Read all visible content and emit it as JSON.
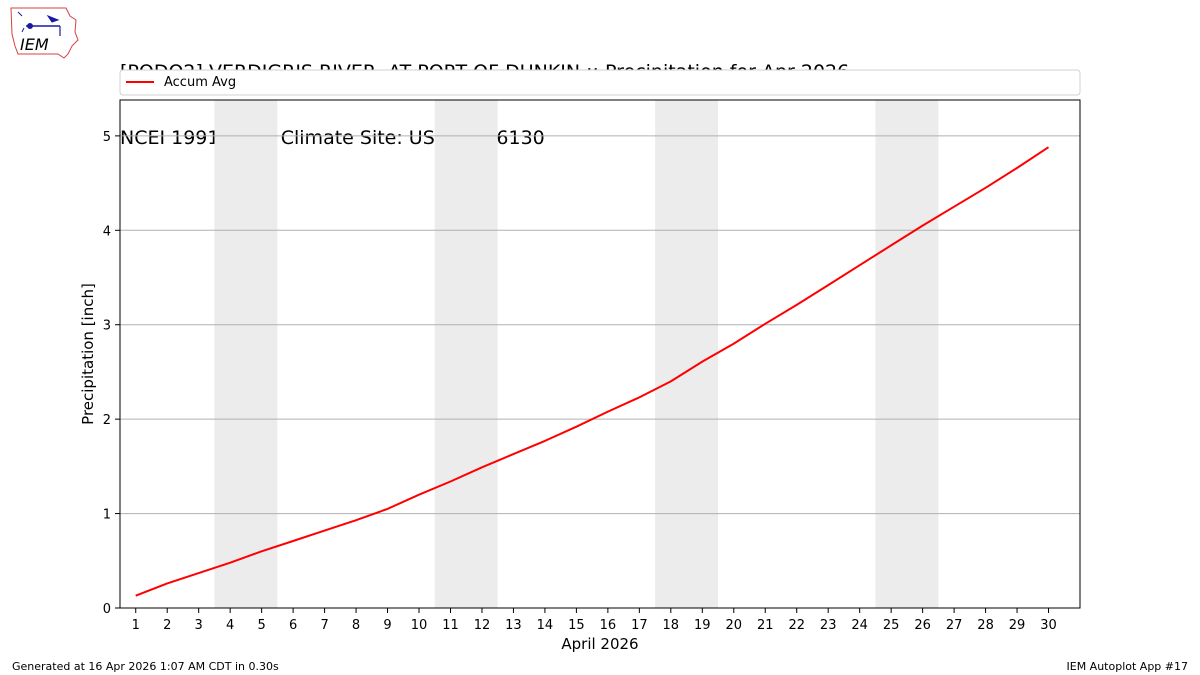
{
  "header": {
    "title_line1": "[PODO2] VERDIGRIS RIVER  AT PORT OF DUNKIN :: Precipitation for Apr 2026",
    "title_line2": "NCEI 1991-2020 Climate Site: USC00346130"
  },
  "logo": {
    "text": "IEM",
    "icon": "iem-iowa-logo-icon"
  },
  "footer": {
    "left": "Generated at 16 Apr 2026 1:07 AM CDT in 0.30s",
    "right": "IEM Autoplot App #17"
  },
  "colors": {
    "series": "#ff0000",
    "weekend": "#ececec",
    "grid": "#b0b0b0"
  },
  "chart_data": {
    "type": "line",
    "title": "[PODO2] VERDIGRIS RIVER  AT PORT OF DUNKIN :: Precipitation for Apr 2026",
    "subtitle": "NCEI 1991-2020 Climate Site: USC00346130",
    "xlabel": "April 2026",
    "ylabel": "Precipitation [inch]",
    "xlim": [
      0.5,
      31.0
    ],
    "ylim": [
      0,
      5.38
    ],
    "yticks": [
      0,
      1,
      2,
      3,
      4,
      5
    ],
    "x": [
      1,
      2,
      3,
      4,
      5,
      6,
      7,
      8,
      9,
      10,
      11,
      12,
      13,
      14,
      15,
      16,
      17,
      18,
      19,
      20,
      21,
      22,
      23,
      24,
      25,
      26,
      27,
      28,
      29,
      30
    ],
    "grid": "horizontal",
    "legend_placement": "top, above plot",
    "shaded_weekends": [
      [
        4,
        5
      ],
      [
        11,
        12
      ],
      [
        18,
        19
      ],
      [
        25,
        26
      ]
    ],
    "series": [
      {
        "name": "Accum Avg",
        "color": "#ff0000",
        "values": [
          0.13,
          0.26,
          0.37,
          0.48,
          0.6,
          0.71,
          0.82,
          0.93,
          1.05,
          1.2,
          1.34,
          1.49,
          1.63,
          1.77,
          1.92,
          2.08,
          2.23,
          2.4,
          2.61,
          2.8,
          3.01,
          3.21,
          3.42,
          3.63,
          3.84,
          4.05,
          4.25,
          4.45,
          4.66,
          4.88
        ]
      }
    ]
  }
}
